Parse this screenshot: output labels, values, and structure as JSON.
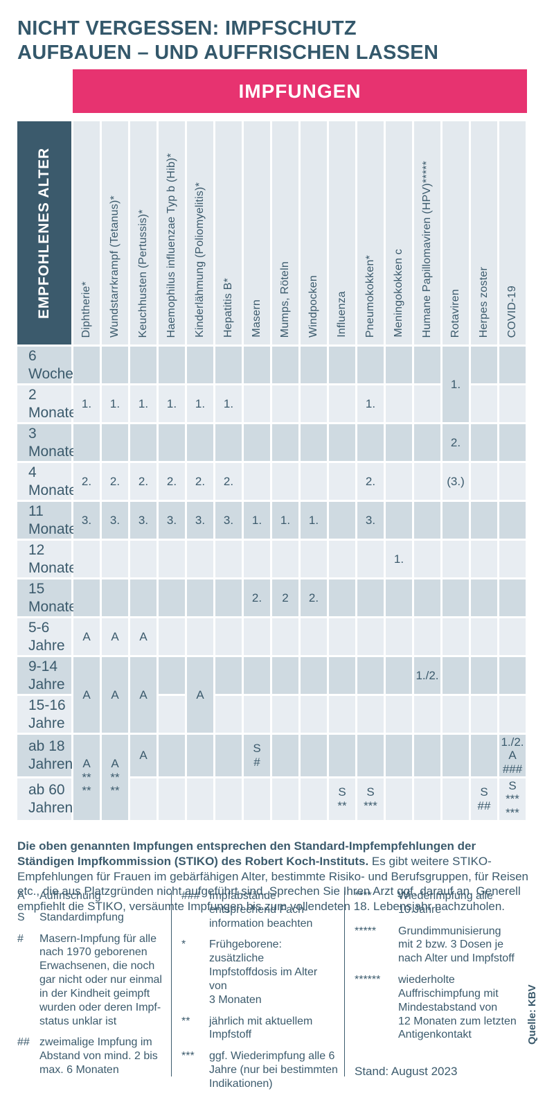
{
  "title": {
    "line1": "NICHT VERGESSEN: IMPFSCHUTZ",
    "line2": "AUFBAUEN – UND AUFFRISCHEN LASSEN"
  },
  "banner": {
    "label": "IMPFUNGEN"
  },
  "colors": {
    "pink": "#e73370",
    "slate": "#3b5a6c",
    "row_dark": "#cfdae1",
    "row_light": "#e8edf2",
    "header_bg": "#e3e9ee"
  },
  "table": {
    "corner_label": "EMPFOHLENES ALTER",
    "columns": [
      "Diphtherie*",
      "Wundstarrkrampf (Tetanus)*",
      "Keuchhusten (Pertussis)*",
      "Haemophilus influenzae Typ b (Hib)*",
      "Kinderlähmung (Poliomyelitis)*",
      "Hepatitis B*",
      "Masern",
      "Mumps, Röteln",
      "Windpocken",
      "Influenza",
      "Pneumokokken*",
      "Meningokokken c",
      "Humane Papillomaviren (HPV)*****",
      "Rotaviren",
      "Herpes zoster",
      "COVID-19"
    ],
    "rows": [
      {
        "age": "6\nWochen",
        "cells": [
          {
            "col": 13,
            "value": "1.",
            "rowspan": 2
          }
        ]
      },
      {
        "age": "2\nMonate",
        "cells": [
          {
            "col": 0,
            "value": "1."
          },
          {
            "col": 1,
            "value": "1."
          },
          {
            "col": 2,
            "value": "1."
          },
          {
            "col": 3,
            "value": "1."
          },
          {
            "col": 4,
            "value": "1."
          },
          {
            "col": 5,
            "value": "1."
          },
          {
            "col": 10,
            "value": "1."
          }
        ]
      },
      {
        "age": "3\nMonate",
        "cells": [
          {
            "col": 13,
            "value": "2."
          }
        ]
      },
      {
        "age": "4\nMonate",
        "cells": [
          {
            "col": 0,
            "value": "2."
          },
          {
            "col": 1,
            "value": "2."
          },
          {
            "col": 2,
            "value": "2."
          },
          {
            "col": 3,
            "value": "2."
          },
          {
            "col": 4,
            "value": "2."
          },
          {
            "col": 5,
            "value": "2."
          },
          {
            "col": 10,
            "value": "2."
          },
          {
            "col": 13,
            "value": "(3.)"
          }
        ]
      },
      {
        "age": "11\nMonate",
        "cells": [
          {
            "col": 0,
            "value": "3."
          },
          {
            "col": 1,
            "value": "3."
          },
          {
            "col": 2,
            "value": "3."
          },
          {
            "col": 3,
            "value": "3."
          },
          {
            "col": 4,
            "value": "3."
          },
          {
            "col": 5,
            "value": "3."
          },
          {
            "col": 6,
            "value": "1."
          },
          {
            "col": 7,
            "value": "1."
          },
          {
            "col": 8,
            "value": "1."
          },
          {
            "col": 10,
            "value": "3."
          }
        ]
      },
      {
        "age": "12\nMonate",
        "cells": [
          {
            "col": 11,
            "value": "1."
          }
        ]
      },
      {
        "age": "15\nMonate",
        "cells": [
          {
            "col": 6,
            "value": "2."
          },
          {
            "col": 7,
            "value": "2"
          },
          {
            "col": 8,
            "value": "2."
          }
        ]
      },
      {
        "age": "5-6\nJahre",
        "cells": [
          {
            "col": 0,
            "value": "A"
          },
          {
            "col": 1,
            "value": "A"
          },
          {
            "col": 2,
            "value": "A"
          }
        ]
      },
      {
        "age": "9-14\nJahre",
        "cells": [
          {
            "col": 0,
            "value": "A",
            "rowspan": 2
          },
          {
            "col": 1,
            "value": "A",
            "rowspan": 2
          },
          {
            "col": 2,
            "value": "A",
            "rowspan": 2
          },
          {
            "col": 4,
            "value": "A",
            "rowspan": 2
          },
          {
            "col": 12,
            "value": "1./2."
          }
        ]
      },
      {
        "age": "15-16\nJahre",
        "cells": []
      },
      {
        "age": "ab 18\nJahren",
        "cells": [
          {
            "col": 0,
            "value": "A\n**\n**",
            "rowspan": 2
          },
          {
            "col": 1,
            "value": "A\n**\n**",
            "rowspan": 2
          },
          {
            "col": 2,
            "value": "A"
          },
          {
            "col": 6,
            "value": "S\n#"
          },
          {
            "col": 15,
            "value": "1./2.\nA\n###"
          }
        ]
      },
      {
        "age": "ab 60\nJahren",
        "cells": [
          {
            "col": 9,
            "value": "S\n**"
          },
          {
            "col": 10,
            "value": "S\n***"
          },
          {
            "col": 14,
            "value": "S\n##"
          },
          {
            "col": 15,
            "value": "S\n***\n***"
          }
        ]
      }
    ]
  },
  "footnote": {
    "bold": "Die oben genannten Impfungen entsprechen den Standard-Impfempfehlungen der Ständigen Impfkommission (STIKO) des Robert Koch-Instituts.",
    "regular": " Es gibt weitere STIKO-Empfehlungen für Frauen im gebärfähigen Alter, bestimmte Risiko- und Berufsgruppen, für Reisen etc., die aus Platzgründen nicht aufgeführt sind. Sprechen Sie Ihren Arzt ggf. darauf an. Generell empfiehlt die STIKO, versäumte Impfungen bis zum vollendeten 18. Lebensjahr nachzuholen."
  },
  "legend": {
    "columns": [
      {
        "items": [
          {
            "symbol": "A",
            "text": "Auffrischung"
          },
          {
            "symbol": "S",
            "text": "Standardimpfung"
          },
          {
            "symbol": "#",
            "text": "Masern-Impfung für alle\nnach 1970 geborenen\nErwachsenen, die noch\ngar nicht oder nur einmal\nin der Kindheit geimpft\nwurden oder deren Impf-\nstatus unklar ist"
          },
          {
            "symbol": "##",
            "text": "zweimalige Impfung im\nAbstand von mind. 2 bis\nmax. 6 Monaten"
          }
        ]
      },
      {
        "items": [
          {
            "symbol": "###",
            "text": "Impfabstände\nentsprechend Fach-\ninformation beachten"
          },
          {
            "symbol": "*",
            "text": "Frühgeborene: zusätzliche\nImpfstoffdosis im Alter von\n3 Monaten"
          },
          {
            "symbol": "**",
            "text": "jährlich mit aktuellem\nImpfstoff"
          },
          {
            "symbol": "***",
            "text": "ggf. Wiederimpfung alle 6\nJahre (nur bei bestimmten\nIndikationen)"
          }
        ]
      },
      {
        "items": [
          {
            "symbol": "****",
            "text": "Wiederimpfung alle\n10 Jahre"
          },
          {
            "symbol": "*****",
            "text": "Grundimmunisierung\nmit 2 bzw. 3 Dosen je\nnach Alter und Impfstoff"
          },
          {
            "symbol": "******",
            "text": "wiederholte\nAuffrischimpfung mit\nMindestabstand von\n12 Monaten zum letzten\nAntigenkontakt"
          }
        ]
      }
    ]
  },
  "stand": "Stand: August 2023",
  "quelle": "Quelle: KBV"
}
